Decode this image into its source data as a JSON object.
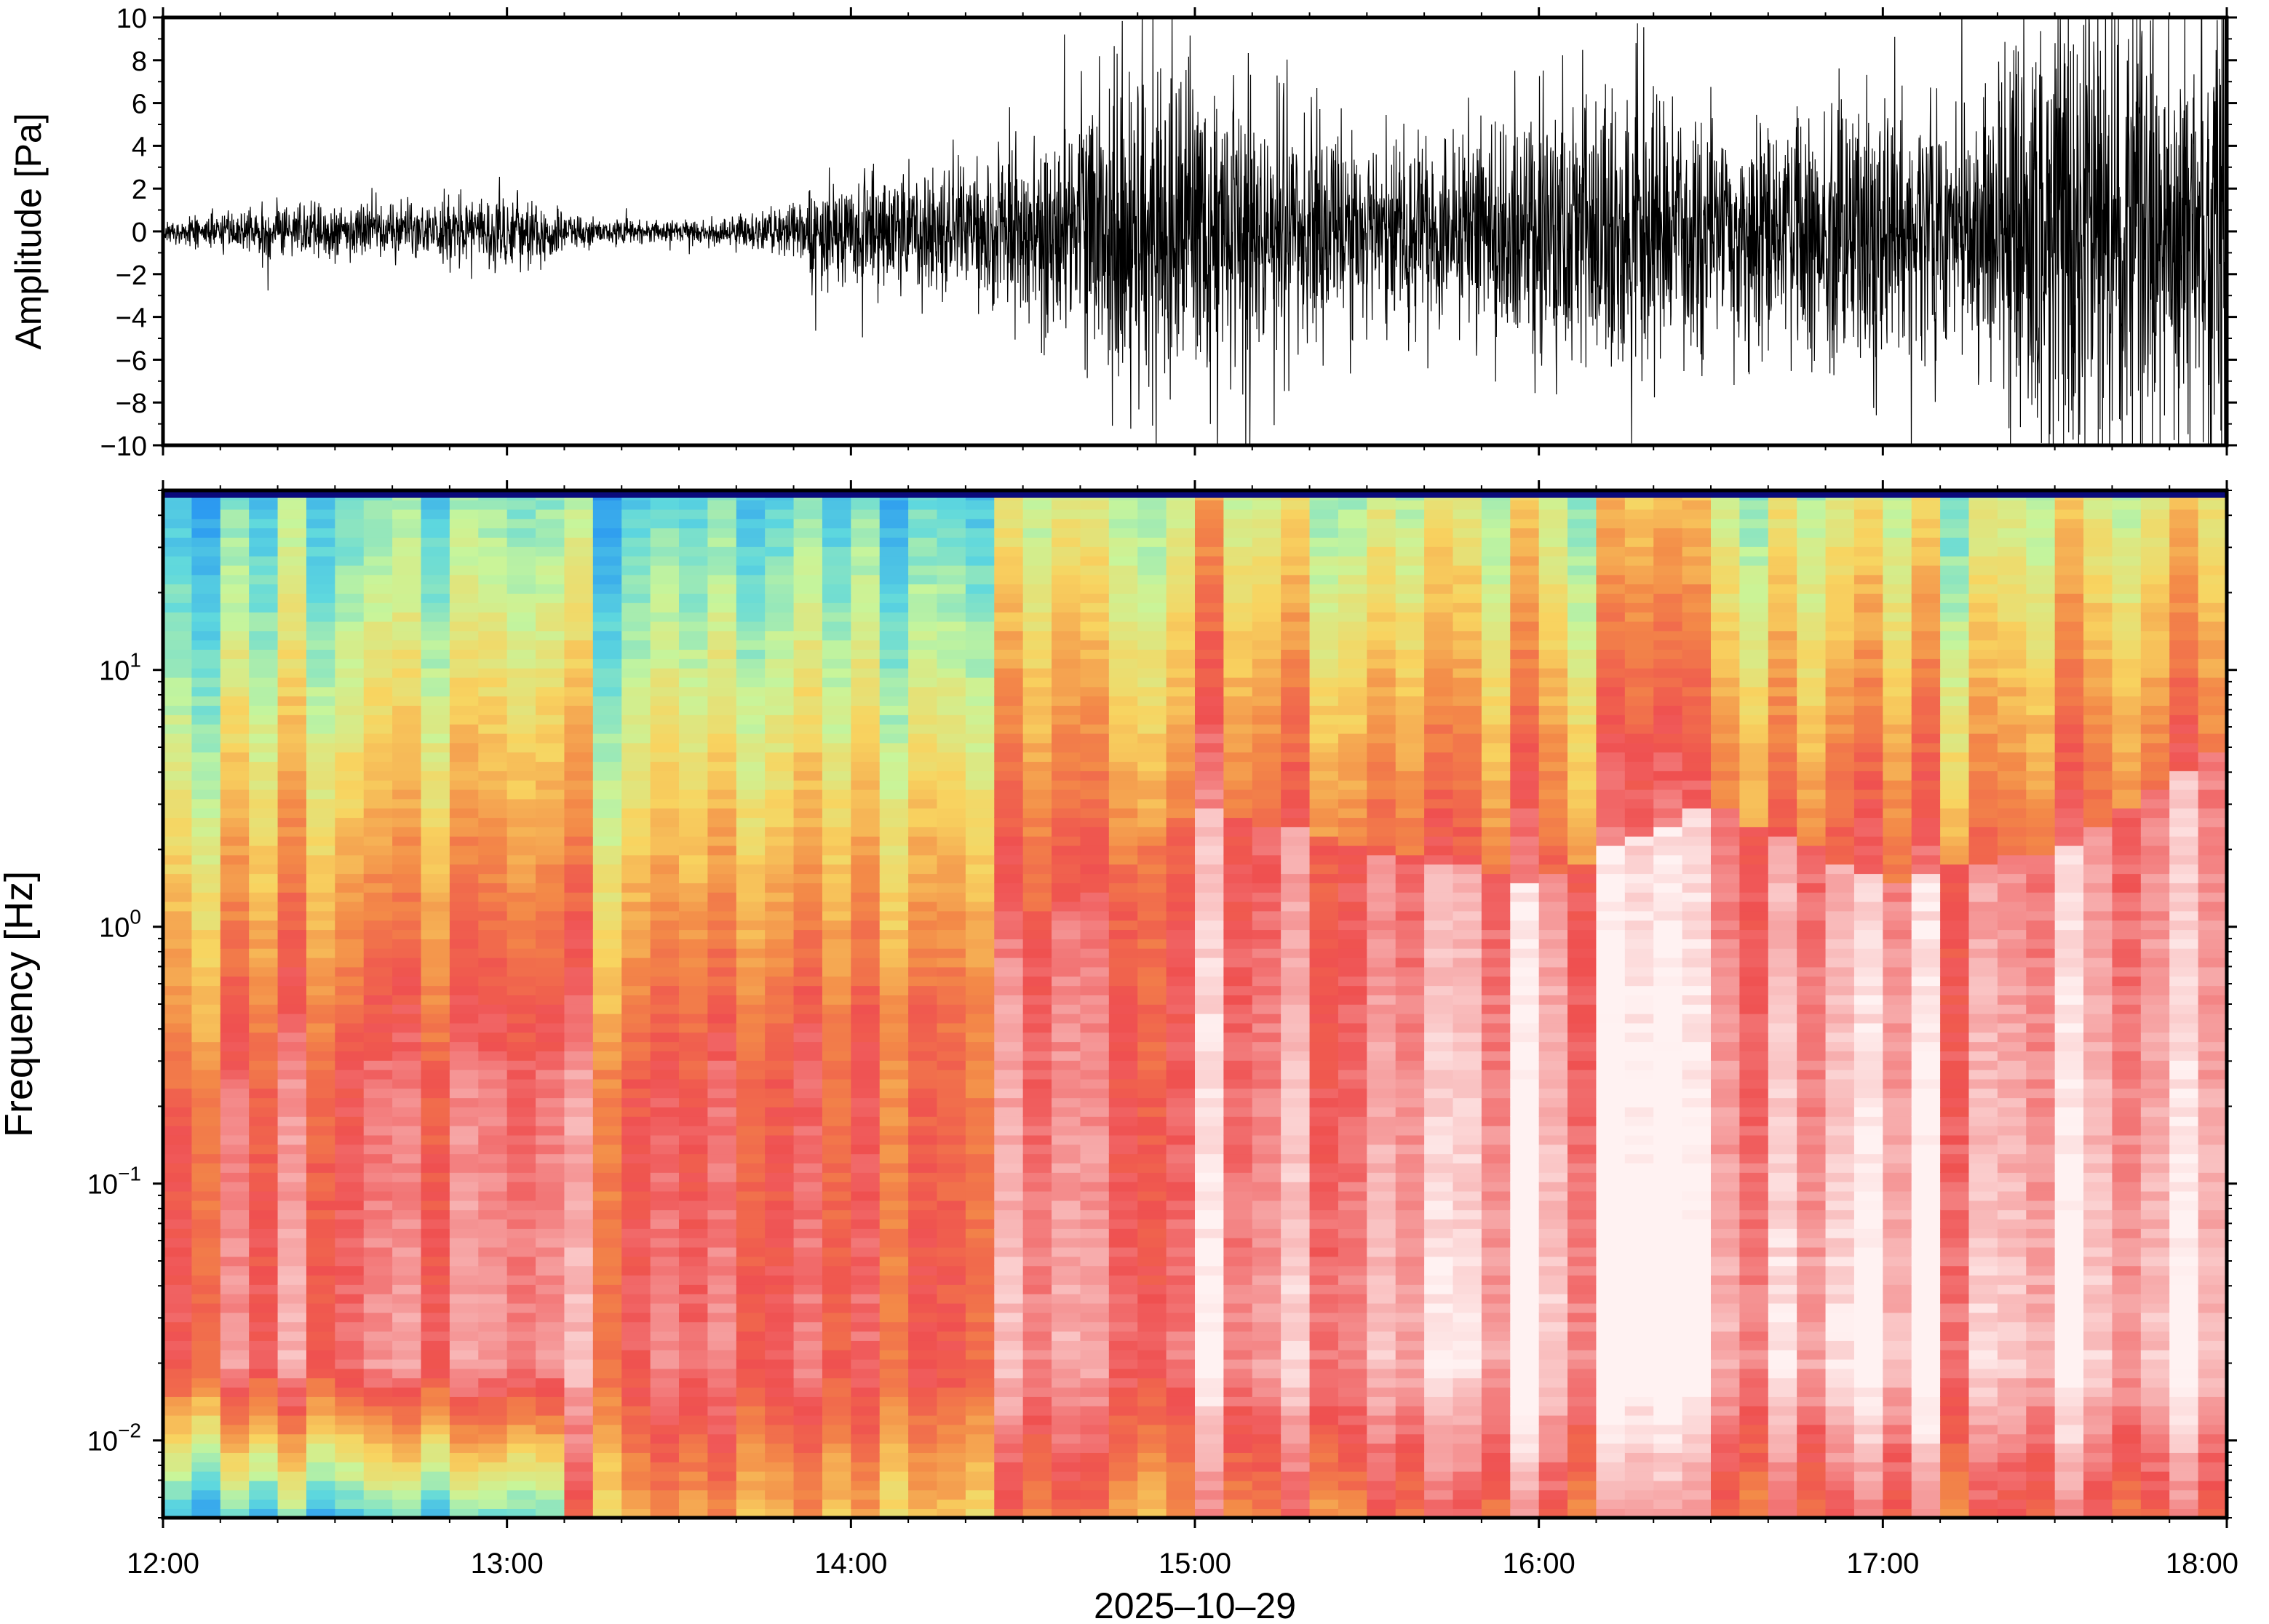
{
  "chart_data": [
    {
      "type": "line",
      "panel": "waveform",
      "ylabel": "Amplitude [Pa]",
      "xlabel": "",
      "ylim": [
        -10,
        10
      ],
      "yticks": [
        -10,
        -8,
        -6,
        -4,
        -2,
        0,
        2,
        4,
        6,
        8,
        10
      ],
      "ytick_labels": [
        "−10",
        "−8",
        "−6",
        "−4",
        "−2",
        "0",
        "2",
        "4",
        "6",
        "8",
        "10"
      ],
      "xlim": [
        "12:00",
        "18:00"
      ],
      "envelope": {
        "description_unit": "Pa",
        "x": [
          "12:00",
          "12:15",
          "12:30",
          "12:45",
          "13:00",
          "13:15",
          "13:30",
          "13:45",
          "14:00",
          "14:15",
          "14:30",
          "14:45",
          "15:00",
          "15:15",
          "15:30",
          "15:45",
          "16:00",
          "16:15",
          "16:30",
          "16:45",
          "17:00",
          "17:15",
          "17:30",
          "17:45",
          "18:00"
        ],
        "typical_amplitude": [
          0.4,
          1.0,
          1.2,
          1.3,
          1.6,
          0.6,
          0.4,
          0.8,
          2.5,
          3.0,
          3.5,
          7.0,
          7.0,
          5.0,
          4.5,
          4.0,
          6.0,
          6.5,
          4.5,
          5.0,
          6.0,
          5.0,
          10.0,
          10.0,
          10.0
        ]
      }
    },
    {
      "type": "heatmap",
      "panel": "spectrogram",
      "ylabel": "Frequency [Hz]",
      "xlabel": "2025–10–29",
      "y_scale": "log",
      "ylim_hz": [
        0.005,
        50
      ],
      "yticks": [
        {
          "base": "10",
          "exp": "−2",
          "value": 0.01
        },
        {
          "base": "10",
          "exp": "−1",
          "value": 0.1
        },
        {
          "base": "10",
          "exp": "0",
          "value": 1
        },
        {
          "base": "10",
          "exp": "1",
          "value": 10
        }
      ],
      "xticks": [
        "12:00",
        "13:00",
        "14:00",
        "15:00",
        "16:00",
        "17:00",
        "18:00"
      ],
      "colormap": [
        "#0a0a7a",
        "#0f3fd6",
        "#2d9cf0",
        "#5ed8de",
        "#c8f59a",
        "#f8d460",
        "#f38a48",
        "#ef5050",
        "#f6a4a4",
        "#fff2f2"
      ],
      "high_energy_front_hz": {
        "note": "frequency below which power is high (warm colours), by time",
        "x": [
          "12:00",
          "12:30",
          "13:00",
          "13:30",
          "14:00",
          "14:30",
          "15:00",
          "15:30",
          "16:00",
          "16:30",
          "17:00",
          "17:30",
          "18:00"
        ],
        "values": [
          0.2,
          0.3,
          0.3,
          0.25,
          0.5,
          0.8,
          3,
          2,
          1.5,
          3,
          1.5,
          2,
          5
        ]
      }
    }
  ]
}
